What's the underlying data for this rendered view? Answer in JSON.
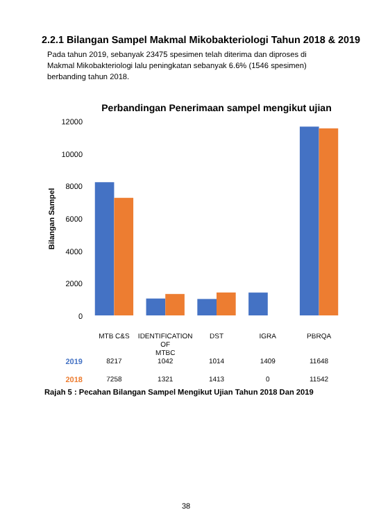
{
  "chart_data": {
    "type": "bar",
    "title": "Perbandingan Penerimaan sampel mengikut ujian",
    "ylabel": "Bilangan Sampel",
    "annotations": [
      "2.2.1 Bilangan Sampel Makmal Mikobakteriologi Tahun 2018 & 2019",
      "Pada tahun 2019, sebanyak 23475 spesimen telah diterima dan diproses di Makmal Mikobakteriologi lalu peningkatan sebanyak 6.6% (1546 spesimen) berbanding tahun 2018.",
      "Rajah 5 : Pecahan Bilangan Sampel Mengikut Ujian Tahun 2018 Dan 2019",
      "38"
    ],
    "categories": [
      "MTB C&S",
      "IDENTIFICATION OF MTBC",
      "DST",
      "IGRA",
      "PBRQA"
    ],
    "series": [
      {
        "name": "2019",
        "color": "#4472c4",
        "values": [
          8217,
          1042,
          1014,
          1409,
          11648
        ]
      },
      {
        "name": "2018",
        "color": "#ed7d31",
        "values": [
          7258,
          1321,
          1413,
          0,
          11542
        ]
      }
    ],
    "ylim": [
      0,
      12000
    ],
    "yticks": [
      0,
      2000,
      4000,
      6000,
      8000,
      10000,
      12000
    ],
    "data_labels": true,
    "legend": "bottom"
  }
}
